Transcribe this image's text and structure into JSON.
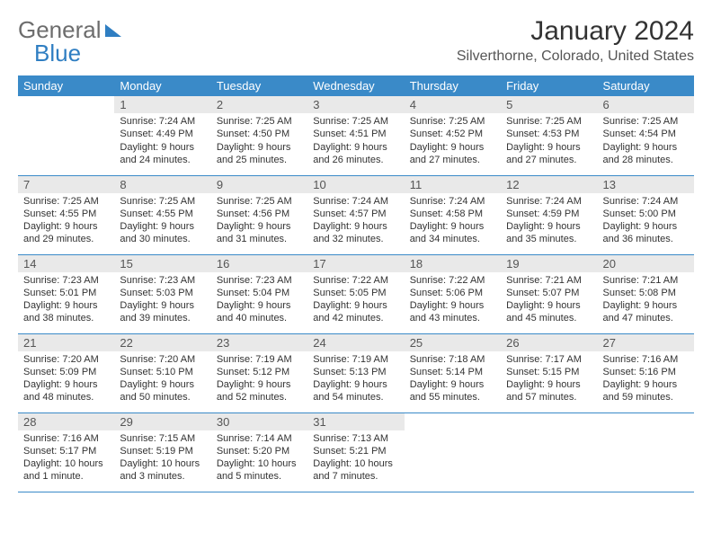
{
  "brand": {
    "part1": "General",
    "part2": "Blue"
  },
  "title": "January 2024",
  "location": "Silverthorne, Colorado, United States",
  "colors": {
    "header_bg": "#3a8ac8",
    "header_text": "#ffffff",
    "daynum_bg": "#e9e9e9",
    "border": "#3a8ac8",
    "brand_gray": "#6d6d6d",
    "brand_blue": "#2f7ec2"
  },
  "typography": {
    "title_fontsize": 30,
    "location_fontsize": 16,
    "dayheader_fontsize": 13,
    "body_fontsize": 11
  },
  "day_headers": [
    "Sunday",
    "Monday",
    "Tuesday",
    "Wednesday",
    "Thursday",
    "Friday",
    "Saturday"
  ],
  "weeks": [
    [
      {
        "n": "",
        "sunrise": "",
        "sunset": "",
        "daylight": "",
        "empty": true
      },
      {
        "n": "1",
        "sunrise": "Sunrise: 7:24 AM",
        "sunset": "Sunset: 4:49 PM",
        "daylight": "Daylight: 9 hours and 24 minutes."
      },
      {
        "n": "2",
        "sunrise": "Sunrise: 7:25 AM",
        "sunset": "Sunset: 4:50 PM",
        "daylight": "Daylight: 9 hours and 25 minutes."
      },
      {
        "n": "3",
        "sunrise": "Sunrise: 7:25 AM",
        "sunset": "Sunset: 4:51 PM",
        "daylight": "Daylight: 9 hours and 26 minutes."
      },
      {
        "n": "4",
        "sunrise": "Sunrise: 7:25 AM",
        "sunset": "Sunset: 4:52 PM",
        "daylight": "Daylight: 9 hours and 27 minutes."
      },
      {
        "n": "5",
        "sunrise": "Sunrise: 7:25 AM",
        "sunset": "Sunset: 4:53 PM",
        "daylight": "Daylight: 9 hours and 27 minutes."
      },
      {
        "n": "6",
        "sunrise": "Sunrise: 7:25 AM",
        "sunset": "Sunset: 4:54 PM",
        "daylight": "Daylight: 9 hours and 28 minutes."
      }
    ],
    [
      {
        "n": "7",
        "sunrise": "Sunrise: 7:25 AM",
        "sunset": "Sunset: 4:55 PM",
        "daylight": "Daylight: 9 hours and 29 minutes."
      },
      {
        "n": "8",
        "sunrise": "Sunrise: 7:25 AM",
        "sunset": "Sunset: 4:55 PM",
        "daylight": "Daylight: 9 hours and 30 minutes."
      },
      {
        "n": "9",
        "sunrise": "Sunrise: 7:25 AM",
        "sunset": "Sunset: 4:56 PM",
        "daylight": "Daylight: 9 hours and 31 minutes."
      },
      {
        "n": "10",
        "sunrise": "Sunrise: 7:24 AM",
        "sunset": "Sunset: 4:57 PM",
        "daylight": "Daylight: 9 hours and 32 minutes."
      },
      {
        "n": "11",
        "sunrise": "Sunrise: 7:24 AM",
        "sunset": "Sunset: 4:58 PM",
        "daylight": "Daylight: 9 hours and 34 minutes."
      },
      {
        "n": "12",
        "sunrise": "Sunrise: 7:24 AM",
        "sunset": "Sunset: 4:59 PM",
        "daylight": "Daylight: 9 hours and 35 minutes."
      },
      {
        "n": "13",
        "sunrise": "Sunrise: 7:24 AM",
        "sunset": "Sunset: 5:00 PM",
        "daylight": "Daylight: 9 hours and 36 minutes."
      }
    ],
    [
      {
        "n": "14",
        "sunrise": "Sunrise: 7:23 AM",
        "sunset": "Sunset: 5:01 PM",
        "daylight": "Daylight: 9 hours and 38 minutes."
      },
      {
        "n": "15",
        "sunrise": "Sunrise: 7:23 AM",
        "sunset": "Sunset: 5:03 PM",
        "daylight": "Daylight: 9 hours and 39 minutes."
      },
      {
        "n": "16",
        "sunrise": "Sunrise: 7:23 AM",
        "sunset": "Sunset: 5:04 PM",
        "daylight": "Daylight: 9 hours and 40 minutes."
      },
      {
        "n": "17",
        "sunrise": "Sunrise: 7:22 AM",
        "sunset": "Sunset: 5:05 PM",
        "daylight": "Daylight: 9 hours and 42 minutes."
      },
      {
        "n": "18",
        "sunrise": "Sunrise: 7:22 AM",
        "sunset": "Sunset: 5:06 PM",
        "daylight": "Daylight: 9 hours and 43 minutes."
      },
      {
        "n": "19",
        "sunrise": "Sunrise: 7:21 AM",
        "sunset": "Sunset: 5:07 PM",
        "daylight": "Daylight: 9 hours and 45 minutes."
      },
      {
        "n": "20",
        "sunrise": "Sunrise: 7:21 AM",
        "sunset": "Sunset: 5:08 PM",
        "daylight": "Daylight: 9 hours and 47 minutes."
      }
    ],
    [
      {
        "n": "21",
        "sunrise": "Sunrise: 7:20 AM",
        "sunset": "Sunset: 5:09 PM",
        "daylight": "Daylight: 9 hours and 48 minutes."
      },
      {
        "n": "22",
        "sunrise": "Sunrise: 7:20 AM",
        "sunset": "Sunset: 5:10 PM",
        "daylight": "Daylight: 9 hours and 50 minutes."
      },
      {
        "n": "23",
        "sunrise": "Sunrise: 7:19 AM",
        "sunset": "Sunset: 5:12 PM",
        "daylight": "Daylight: 9 hours and 52 minutes."
      },
      {
        "n": "24",
        "sunrise": "Sunrise: 7:19 AM",
        "sunset": "Sunset: 5:13 PM",
        "daylight": "Daylight: 9 hours and 54 minutes."
      },
      {
        "n": "25",
        "sunrise": "Sunrise: 7:18 AM",
        "sunset": "Sunset: 5:14 PM",
        "daylight": "Daylight: 9 hours and 55 minutes."
      },
      {
        "n": "26",
        "sunrise": "Sunrise: 7:17 AM",
        "sunset": "Sunset: 5:15 PM",
        "daylight": "Daylight: 9 hours and 57 minutes."
      },
      {
        "n": "27",
        "sunrise": "Sunrise: 7:16 AM",
        "sunset": "Sunset: 5:16 PM",
        "daylight": "Daylight: 9 hours and 59 minutes."
      }
    ],
    [
      {
        "n": "28",
        "sunrise": "Sunrise: 7:16 AM",
        "sunset": "Sunset: 5:17 PM",
        "daylight": "Daylight: 10 hours and 1 minute."
      },
      {
        "n": "29",
        "sunrise": "Sunrise: 7:15 AM",
        "sunset": "Sunset: 5:19 PM",
        "daylight": "Daylight: 10 hours and 3 minutes."
      },
      {
        "n": "30",
        "sunrise": "Sunrise: 7:14 AM",
        "sunset": "Sunset: 5:20 PM",
        "daylight": "Daylight: 10 hours and 5 minutes."
      },
      {
        "n": "31",
        "sunrise": "Sunrise: 7:13 AM",
        "sunset": "Sunset: 5:21 PM",
        "daylight": "Daylight: 10 hours and 7 minutes."
      },
      {
        "n": "",
        "sunrise": "",
        "sunset": "",
        "daylight": "",
        "empty": true
      },
      {
        "n": "",
        "sunrise": "",
        "sunset": "",
        "daylight": "",
        "empty": true
      },
      {
        "n": "",
        "sunrise": "",
        "sunset": "",
        "daylight": "",
        "empty": true
      }
    ]
  ]
}
